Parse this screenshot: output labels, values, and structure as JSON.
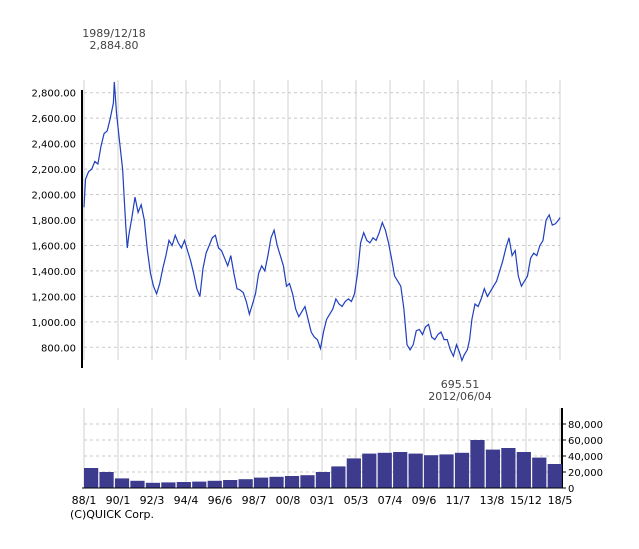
{
  "chart_data": [
    {
      "type": "line",
      "title": "",
      "xlabel": "",
      "ylabel": "",
      "ylim": [
        700,
        2900
      ],
      "y_ticks": [
        "800.00",
        "1,000.00",
        "1,200.00",
        "1,400.00",
        "1,600.00",
        "1,800.00",
        "2,000.00",
        "2,200.00",
        "2,400.00",
        "2,600.00",
        "2,800.00"
      ],
      "x_ticks": [
        "88/1",
        "90/1",
        "92/3",
        "94/4",
        "96/6",
        "98/7",
        "00/8",
        "03/1",
        "05/3",
        "07/4",
        "09/6",
        "11/7",
        "13/8",
        "15/12",
        "18/5"
      ],
      "grid": true,
      "line_color": "#1f3fbf",
      "series": [
        {
          "values": [
            [
              1988.0,
              1900
            ],
            [
              1988.1,
              2120
            ],
            [
              1988.3,
              2180
            ],
            [
              1988.5,
              2200
            ],
            [
              1988.7,
              2260
            ],
            [
              1988.9,
              2240
            ],
            [
              1989.1,
              2380
            ],
            [
              1989.3,
              2480
            ],
            [
              1989.5,
              2500
            ],
            [
              1989.7,
              2600
            ],
            [
              1989.9,
              2720
            ],
            [
              1989.96,
              2884.8
            ],
            [
              1990.1,
              2640
            ],
            [
              1990.3,
              2420
            ],
            [
              1990.5,
              2200
            ],
            [
              1990.7,
              1760
            ],
            [
              1990.8,
              1580
            ],
            [
              1990.9,
              1680
            ],
            [
              1991.1,
              1820
            ],
            [
              1991.3,
              1980
            ],
            [
              1991.5,
              1860
            ],
            [
              1991.7,
              1920
            ],
            [
              1991.9,
              1800
            ],
            [
              1992.1,
              1560
            ],
            [
              1992.3,
              1380
            ],
            [
              1992.5,
              1280
            ],
            [
              1992.7,
              1220
            ],
            [
              1992.9,
              1300
            ],
            [
              1993.1,
              1420
            ],
            [
              1993.3,
              1520
            ],
            [
              1993.5,
              1640
            ],
            [
              1993.7,
              1600
            ],
            [
              1993.9,
              1680
            ],
            [
              1994.1,
              1620
            ],
            [
              1994.3,
              1580
            ],
            [
              1994.5,
              1640
            ],
            [
              1994.7,
              1560
            ],
            [
              1994.9,
              1480
            ],
            [
              1995.1,
              1380
            ],
            [
              1995.3,
              1260
            ],
            [
              1995.5,
              1200
            ],
            [
              1995.7,
              1420
            ],
            [
              1995.9,
              1540
            ],
            [
              1996.1,
              1600
            ],
            [
              1996.3,
              1660
            ],
            [
              1996.5,
              1680
            ],
            [
              1996.7,
              1580
            ],
            [
              1996.9,
              1560
            ],
            [
              1997.1,
              1500
            ],
            [
              1997.3,
              1440
            ],
            [
              1997.5,
              1520
            ],
            [
              1997.7,
              1380
            ],
            [
              1997.9,
              1260
            ],
            [
              1998.1,
              1250
            ],
            [
              1998.3,
              1230
            ],
            [
              1998.5,
              1160
            ],
            [
              1998.7,
              1060
            ],
            [
              1998.9,
              1140
            ],
            [
              1999.1,
              1220
            ],
            [
              1999.3,
              1380
            ],
            [
              1999.5,
              1440
            ],
            [
              1999.7,
              1400
            ],
            [
              1999.9,
              1520
            ],
            [
              2000.1,
              1660
            ],
            [
              2000.3,
              1720
            ],
            [
              2000.5,
              1600
            ],
            [
              2000.7,
              1520
            ],
            [
              2000.9,
              1440
            ],
            [
              2001.1,
              1280
            ],
            [
              2001.3,
              1300
            ],
            [
              2001.5,
              1220
            ],
            [
              2001.7,
              1100
            ],
            [
              2001.9,
              1040
            ],
            [
              2002.1,
              1080
            ],
            [
              2002.3,
              1120
            ],
            [
              2002.5,
              1020
            ],
            [
              2002.7,
              920
            ],
            [
              2002.9,
              880
            ],
            [
              2003.1,
              860
            ],
            [
              2003.3,
              790
            ],
            [
              2003.5,
              920
            ],
            [
              2003.7,
              1020
            ],
            [
              2003.9,
              1060
            ],
            [
              2004.1,
              1100
            ],
            [
              2004.3,
              1180
            ],
            [
              2004.5,
              1140
            ],
            [
              2004.7,
              1120
            ],
            [
              2004.9,
              1160
            ],
            [
              2005.1,
              1180
            ],
            [
              2005.3,
              1160
            ],
            [
              2005.5,
              1220
            ],
            [
              2005.7,
              1380
            ],
            [
              2005.9,
              1620
            ],
            [
              2006.1,
              1700
            ],
            [
              2006.3,
              1640
            ],
            [
              2006.5,
              1620
            ],
            [
              2006.7,
              1660
            ],
            [
              2006.9,
              1640
            ],
            [
              2007.1,
              1700
            ],
            [
              2007.3,
              1780
            ],
            [
              2007.5,
              1720
            ],
            [
              2007.7,
              1620
            ],
            [
              2007.9,
              1500
            ],
            [
              2008.1,
              1360
            ],
            [
              2008.3,
              1320
            ],
            [
              2008.5,
              1280
            ],
            [
              2008.7,
              1100
            ],
            [
              2008.9,
              820
            ],
            [
              2009.1,
              780
            ],
            [
              2009.3,
              820
            ],
            [
              2009.5,
              930
            ],
            [
              2009.7,
              940
            ],
            [
              2009.9,
              900
            ],
            [
              2010.1,
              960
            ],
            [
              2010.3,
              980
            ],
            [
              2010.5,
              880
            ],
            [
              2010.7,
              860
            ],
            [
              2010.9,
              900
            ],
            [
              2011.1,
              920
            ],
            [
              2011.3,
              860
            ],
            [
              2011.5,
              860
            ],
            [
              2011.7,
              780
            ],
            [
              2011.9,
              730
            ],
            [
              2012.1,
              820
            ],
            [
              2012.3,
              760
            ],
            [
              2012.45,
              695.51
            ],
            [
              2012.6,
              740
            ],
            [
              2012.8,
              780
            ],
            [
              2012.95,
              860
            ],
            [
              2013.1,
              1020
            ],
            [
              2013.3,
              1140
            ],
            [
              2013.5,
              1120
            ],
            [
              2013.7,
              1180
            ],
            [
              2013.9,
              1260
            ],
            [
              2014.1,
              1200
            ],
            [
              2014.3,
              1240
            ],
            [
              2014.5,
              1280
            ],
            [
              2014.7,
              1320
            ],
            [
              2014.9,
              1400
            ],
            [
              2015.1,
              1480
            ],
            [
              2015.3,
              1580
            ],
            [
              2015.5,
              1660
            ],
            [
              2015.7,
              1520
            ],
            [
              2015.9,
              1560
            ],
            [
              2016.1,
              1360
            ],
            [
              2016.3,
              1280
            ],
            [
              2016.5,
              1320
            ],
            [
              2016.7,
              1360
            ],
            [
              2016.9,
              1500
            ],
            [
              2017.1,
              1540
            ],
            [
              2017.3,
              1520
            ],
            [
              2017.5,
              1600
            ],
            [
              2017.7,
              1640
            ],
            [
              2017.9,
              1800
            ],
            [
              2018.1,
              1840
            ],
            [
              2018.3,
              1760
            ],
            [
              2018.5,
              1770
            ],
            [
              2018.7,
              1800
            ],
            [
              2018.8,
              1820
            ]
          ]
        }
      ],
      "annotations": [
        {
          "date": "1989/12/18",
          "value": "2,884.80",
          "x": 1989.96,
          "y": 2884.8
        },
        {
          "date": "2012/06/04",
          "value": "695.51",
          "x": 2012.45,
          "y": 695.51
        }
      ]
    },
    {
      "type": "bar",
      "title": "",
      "xlabel": "",
      "ylabel": "",
      "ylim": [
        0,
        100000
      ],
      "y_ticks": [
        "0",
        "20,000",
        "40,000",
        "60,000",
        "80,000"
      ],
      "bar_color": "#3d3b8e",
      "series": [
        {
          "values": [
            [
              1988,
              25000
            ],
            [
              1989,
              20000
            ],
            [
              1990,
              12000
            ],
            [
              1991,
              9000
            ],
            [
              1992,
              6500
            ],
            [
              1993,
              7000
            ],
            [
              1994,
              7500
            ],
            [
              1995,
              8000
            ],
            [
              1996,
              9000
            ],
            [
              1997,
              10000
            ],
            [
              1998,
              11000
            ],
            [
              1999,
              13000
            ],
            [
              2000,
              14000
            ],
            [
              2001,
              15000
            ],
            [
              2002,
              16000
            ],
            [
              2003,
              20000
            ],
            [
              2004,
              27000
            ],
            [
              2005,
              37000
            ],
            [
              2006,
              43000
            ],
            [
              2007,
              44000
            ],
            [
              2008,
              45000
            ],
            [
              2009,
              43000
            ],
            [
              2010,
              41000
            ],
            [
              2011,
              42000
            ],
            [
              2012,
              44000
            ],
            [
              2013,
              60000
            ],
            [
              2014,
              48000
            ],
            [
              2015,
              50000
            ],
            [
              2016,
              45000
            ],
            [
              2017,
              38000
            ],
            [
              2018,
              30000
            ]
          ]
        }
      ]
    }
  ],
  "annotation_top": {
    "date": "1989/12/18",
    "value": "2,884.80"
  },
  "annotation_low": {
    "value": "695.51",
    "date": "2012/06/04"
  },
  "credit": "(C)QUICK Corp."
}
